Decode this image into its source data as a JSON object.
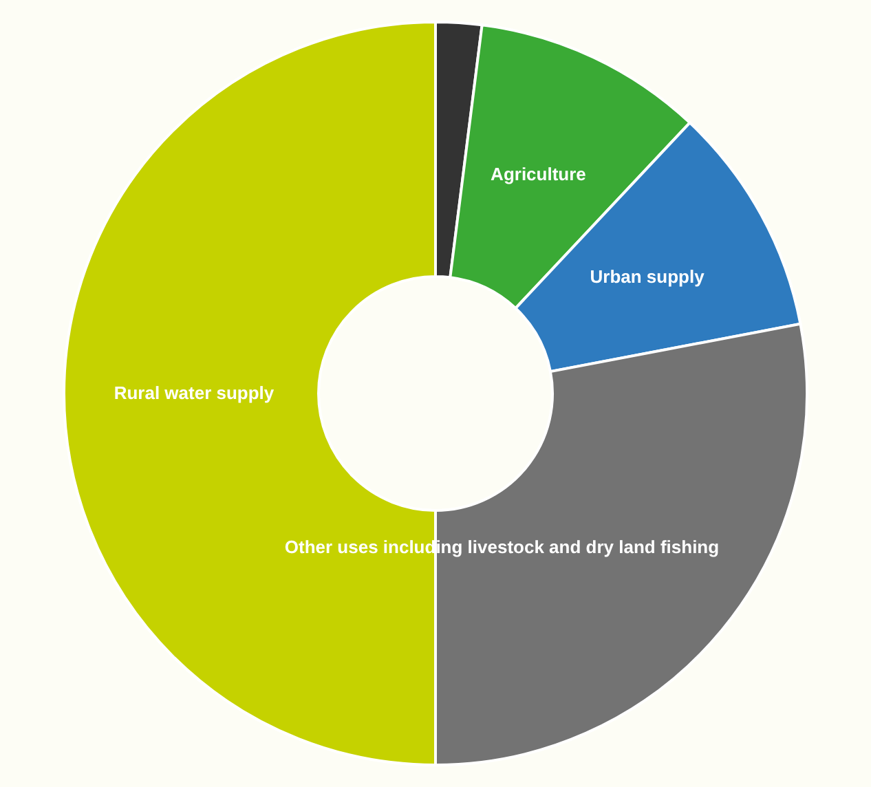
{
  "chart_data": {
    "type": "donut",
    "categories": [
      null,
      "Agriculture",
      "Urban supply",
      "Other uses including livestock and dry land fishing",
      "Rural water supply"
    ],
    "values": [
      2,
      10,
      10,
      28,
      50
    ],
    "colors": [
      "#333333",
      "#3aaa35",
      "#2e7bbf",
      "#737373",
      "#c5d200"
    ]
  }
}
